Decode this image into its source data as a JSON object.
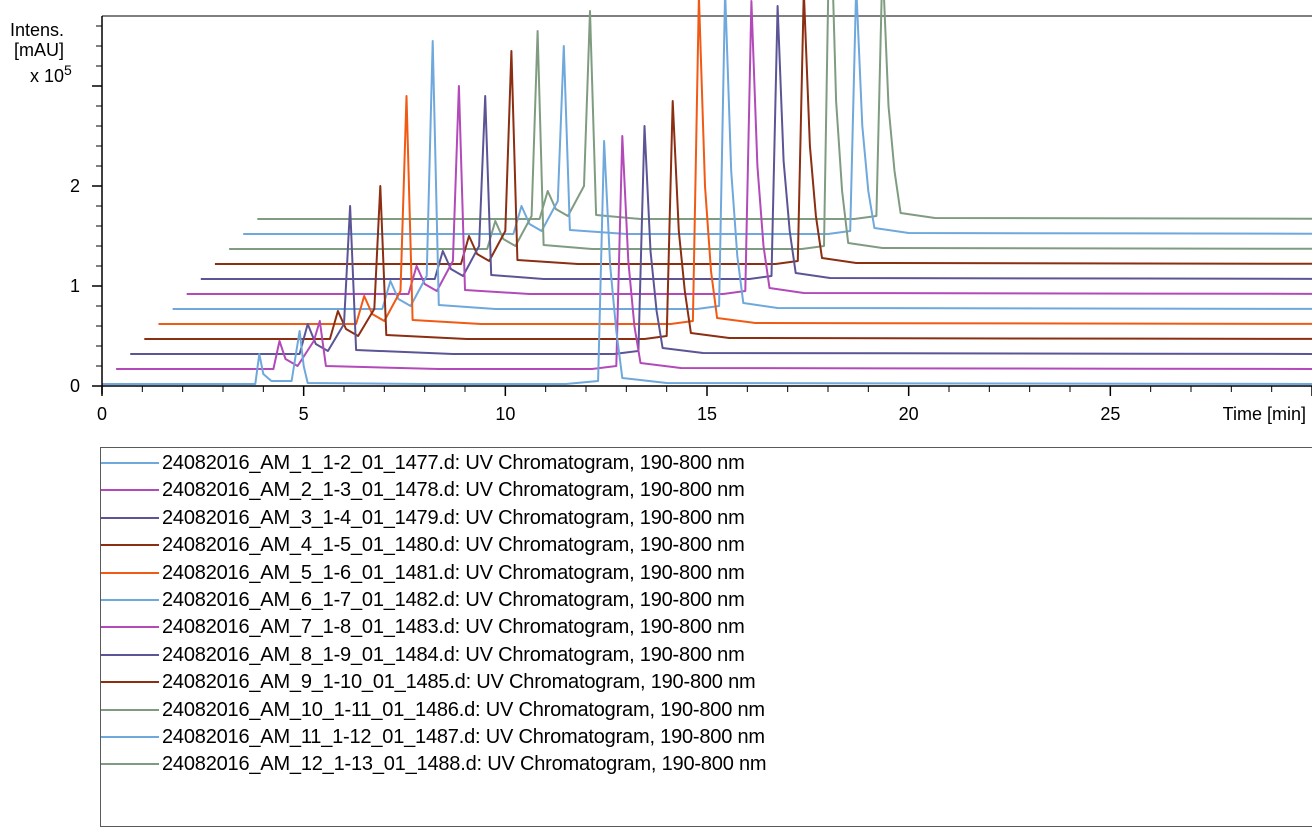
{
  "chart_data": {
    "type": "line",
    "ylabel_lines": [
      "Intens.",
      "[mAU]"
    ],
    "yscale_prefix": "x 10",
    "yscale_exp": "5",
    "xlabel": "Time [min]",
    "xlim": [
      0,
      30
    ],
    "ylim": [
      0,
      3.7
    ],
    "x_ticks": [
      0,
      5,
      10,
      15,
      20,
      25
    ],
    "y_ticks": [
      0,
      1,
      2
    ],
    "offset_x_per_series": 0.35,
    "offset_y_per_series": 0.15,
    "series": [
      {
        "name": "24082016_AM_1_1-2_01_1477.d: UV Chromatogram, 190-800 nm",
        "color": "#6fa8dc",
        "x": [
          0,
          3.8,
          3.9,
          4.0,
          4.2,
          4.7,
          4.8,
          4.9,
          5.0,
          5.1,
          8.0,
          11.5,
          12.3,
          12.45,
          12.6,
          12.75,
          12.9,
          14.0,
          30
        ],
        "y": [
          0.02,
          0.02,
          0.32,
          0.12,
          0.05,
          0.05,
          0.3,
          0.55,
          0.2,
          0.03,
          0.02,
          0.02,
          0.05,
          2.45,
          1.2,
          0.55,
          0.08,
          0.03,
          0.02
        ]
      },
      {
        "name": "24082016_AM_2_1-3_01_1478.d: UV Chromatogram, 190-800 nm",
        "color": "#b24ab9",
        "x": [
          0,
          3.9,
          4.05,
          4.2,
          4.5,
          4.9,
          5.05,
          5.2,
          8.0,
          11.8,
          12.4,
          12.55,
          12.7,
          12.85,
          13.0,
          14.0,
          30
        ],
        "y": [
          0.02,
          0.02,
          0.3,
          0.12,
          0.05,
          0.3,
          0.5,
          0.05,
          0.02,
          0.02,
          0.05,
          2.35,
          1.1,
          0.45,
          0.08,
          0.03,
          0.02
        ]
      },
      {
        "name": "24082016_AM_3_1-4_01_1479.d: UV Chromatogram, 190-800 nm",
        "color": "#5b5596",
        "x": [
          0,
          4.2,
          4.4,
          4.6,
          4.9,
          5.3,
          5.45,
          5.6,
          8.0,
          12.0,
          12.6,
          12.75,
          12.9,
          13.05,
          13.2,
          14.2,
          30
        ],
        "y": [
          0.02,
          0.02,
          0.32,
          0.12,
          0.05,
          0.32,
          1.5,
          0.06,
          0.02,
          0.02,
          0.05,
          2.3,
          1.05,
          0.45,
          0.08,
          0.03,
          0.02
        ]
      },
      {
        "name": "24082016_AM_4_1-5_01_1480.d: UV Chromatogram, 190-800 nm",
        "color": "#8b2e12",
        "x": [
          0,
          4.6,
          4.8,
          5.0,
          5.3,
          5.7,
          5.85,
          6.0,
          8.0,
          12.4,
          12.95,
          13.1,
          13.25,
          13.4,
          13.55,
          14.5,
          30
        ],
        "y": [
          0.02,
          0.02,
          0.3,
          0.12,
          0.05,
          0.32,
          1.55,
          0.06,
          0.02,
          0.02,
          0.05,
          2.4,
          1.1,
          0.5,
          0.08,
          0.03,
          0.02
        ]
      },
      {
        "name": "24082016_AM_5_1-6_01_1481.d: UV Chromatogram, 190-800 nm",
        "color": "#f05a14",
        "x": [
          0,
          4.9,
          5.1,
          5.3,
          5.6,
          6.0,
          6.15,
          6.3,
          8.0,
          12.7,
          13.25,
          13.4,
          13.55,
          13.7,
          13.85,
          14.8,
          30
        ],
        "y": [
          0.02,
          0.02,
          0.3,
          0.12,
          0.05,
          0.35,
          2.3,
          0.06,
          0.02,
          0.02,
          0.05,
          3.3,
          1.4,
          0.55,
          0.08,
          0.03,
          0.02
        ]
      },
      {
        "name": "24082016_AM_6_1-7_01_1482.d: UV Chromatogram, 190-800 nm",
        "color": "#6fa8dc",
        "x": [
          0,
          5.2,
          5.4,
          5.6,
          5.9,
          6.3,
          6.45,
          6.6,
          8.0,
          13.0,
          13.55,
          13.7,
          13.85,
          14.0,
          14.15,
          15.0,
          30
        ],
        "y": [
          0.02,
          0.02,
          0.3,
          0.12,
          0.05,
          0.35,
          2.7,
          0.06,
          0.02,
          0.02,
          0.05,
          3.2,
          1.4,
          0.55,
          0.08,
          0.03,
          0.02
        ]
      },
      {
        "name": "24082016_AM_7_1-8_01_1483.d: UV Chromatogram, 190-800 nm",
        "color": "#b24ab9",
        "x": [
          0,
          5.5,
          5.7,
          5.9,
          6.2,
          6.6,
          6.75,
          6.9,
          8.5,
          13.3,
          13.85,
          14.0,
          14.15,
          14.3,
          14.45,
          15.3,
          30
        ],
        "y": [
          0.02,
          0.02,
          0.3,
          0.12,
          0.05,
          0.35,
          2.1,
          0.06,
          0.02,
          0.02,
          0.05,
          2.95,
          1.3,
          0.5,
          0.08,
          0.03,
          0.02
        ]
      },
      {
        "name": "24082016_AM_8_1-9_01_1484.d: UV Chromatogram, 190-800 nm",
        "color": "#5b5596",
        "x": [
          0,
          5.8,
          6.0,
          6.2,
          6.5,
          6.9,
          7.05,
          7.2,
          8.5,
          13.6,
          14.15,
          14.3,
          14.45,
          14.6,
          14.75,
          15.6,
          30
        ],
        "y": [
          0.02,
          0.02,
          0.3,
          0.12,
          0.05,
          0.35,
          1.85,
          0.06,
          0.02,
          0.02,
          0.05,
          2.75,
          1.2,
          0.5,
          0.08,
          0.03,
          0.02
        ]
      },
      {
        "name": "24082016_AM_9_1-10_01_1485.d: UV Chromatogram, 190-800 nm",
        "color": "#8b2e12",
        "x": [
          0,
          6.1,
          6.3,
          6.5,
          6.8,
          7.2,
          7.35,
          7.5,
          9.0,
          13.9,
          14.45,
          14.6,
          14.75,
          14.9,
          15.05,
          15.9,
          30
        ],
        "y": [
          0.02,
          0.02,
          0.3,
          0.12,
          0.05,
          0.35,
          2.15,
          0.06,
          0.02,
          0.02,
          0.05,
          2.75,
          1.2,
          0.5,
          0.08,
          0.03,
          0.02
        ]
      },
      {
        "name": "24082016_AM_10_1-11_01_1486.d: UV Chromatogram, 190-800 nm",
        "color": "#809c80",
        "x": [
          0,
          6.4,
          6.6,
          6.8,
          7.1,
          7.5,
          7.65,
          7.8,
          9.0,
          14.2,
          14.75,
          14.9,
          15.05,
          15.2,
          15.35,
          16.2,
          30
        ],
        "y": [
          0.02,
          0.02,
          0.3,
          0.12,
          0.05,
          0.35,
          2.2,
          0.06,
          0.02,
          0.02,
          0.05,
          3.65,
          1.5,
          0.6,
          0.08,
          0.03,
          0.02
        ]
      },
      {
        "name": "24082016_AM_11_1-12_01_1487.d: UV Chromatogram, 190-800 nm",
        "color": "#6fa8dc",
        "x": [
          0,
          6.7,
          6.9,
          7.1,
          7.4,
          7.8,
          7.95,
          8.1,
          9.5,
          14.5,
          15.05,
          15.2,
          15.35,
          15.5,
          15.65,
          16.5,
          30
        ],
        "y": [
          0.02,
          0.02,
          0.3,
          0.12,
          0.05,
          0.35,
          1.9,
          0.06,
          0.02,
          0.02,
          0.05,
          2.5,
          1.1,
          0.45,
          0.08,
          0.03,
          0.02
        ]
      },
      {
        "name": "24082016_AM_12_1-13_01_1488.d: UV Chromatogram, 190-800 nm",
        "color": "#809c80",
        "x": [
          0,
          7.0,
          7.2,
          7.4,
          7.7,
          8.1,
          8.25,
          8.4,
          9.5,
          14.8,
          15.35,
          15.5,
          15.65,
          15.8,
          15.95,
          16.8,
          30
        ],
        "y": [
          0.02,
          0.02,
          0.3,
          0.12,
          0.05,
          0.35,
          2.1,
          0.06,
          0.02,
          0.02,
          0.05,
          2.6,
          1.15,
          0.5,
          0.08,
          0.03,
          0.02
        ]
      }
    ]
  }
}
